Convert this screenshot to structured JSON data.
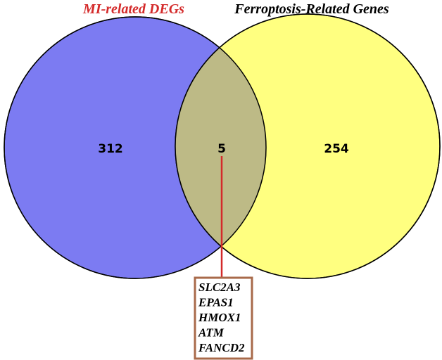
{
  "labels": {
    "left": "MI-related DEGs",
    "right": "Ferroptosis-Related Genes"
  },
  "counts": {
    "left": 312,
    "overlap": 5,
    "right": 254
  },
  "genes": [
    "SLC2A3",
    "EPAS1",
    "HMOX1",
    "ATM",
    "FANCD2"
  ]
}
